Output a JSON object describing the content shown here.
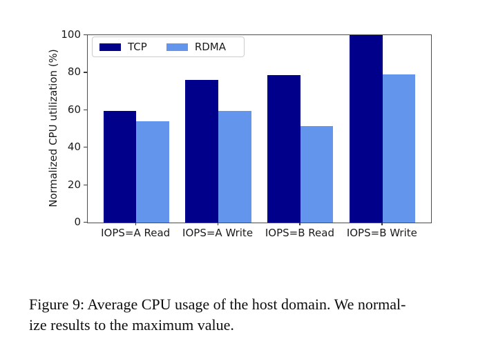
{
  "figure": {
    "caption_line1": "Figure 9: Average CPU usage of the host domain. We normal-",
    "caption_line2": "ize results to the maximum value."
  },
  "chart_data": {
    "type": "bar",
    "title": "",
    "xlabel": "",
    "ylabel": "Normalized CPU utilization (%)",
    "ylim": [
      0,
      100
    ],
    "yticks": [
      0,
      20,
      40,
      60,
      80,
      100
    ],
    "categories": [
      "IOPS=A Read",
      "IOPS=A Write",
      "IOPS=B Read",
      "IOPS=B Write"
    ],
    "series": [
      {
        "name": "TCP",
        "color": "#00008B",
        "values": [
          59.5,
          76,
          78.5,
          100
        ]
      },
      {
        "name": "RDMA",
        "color": "#6495ED",
        "values": [
          54,
          59.5,
          51.5,
          79
        ]
      }
    ],
    "legend_position": "upper-left",
    "grid": false,
    "colors": {
      "tcp": "#00008B",
      "rdma": "#6495ED",
      "spine": "#4a4a4a"
    }
  }
}
